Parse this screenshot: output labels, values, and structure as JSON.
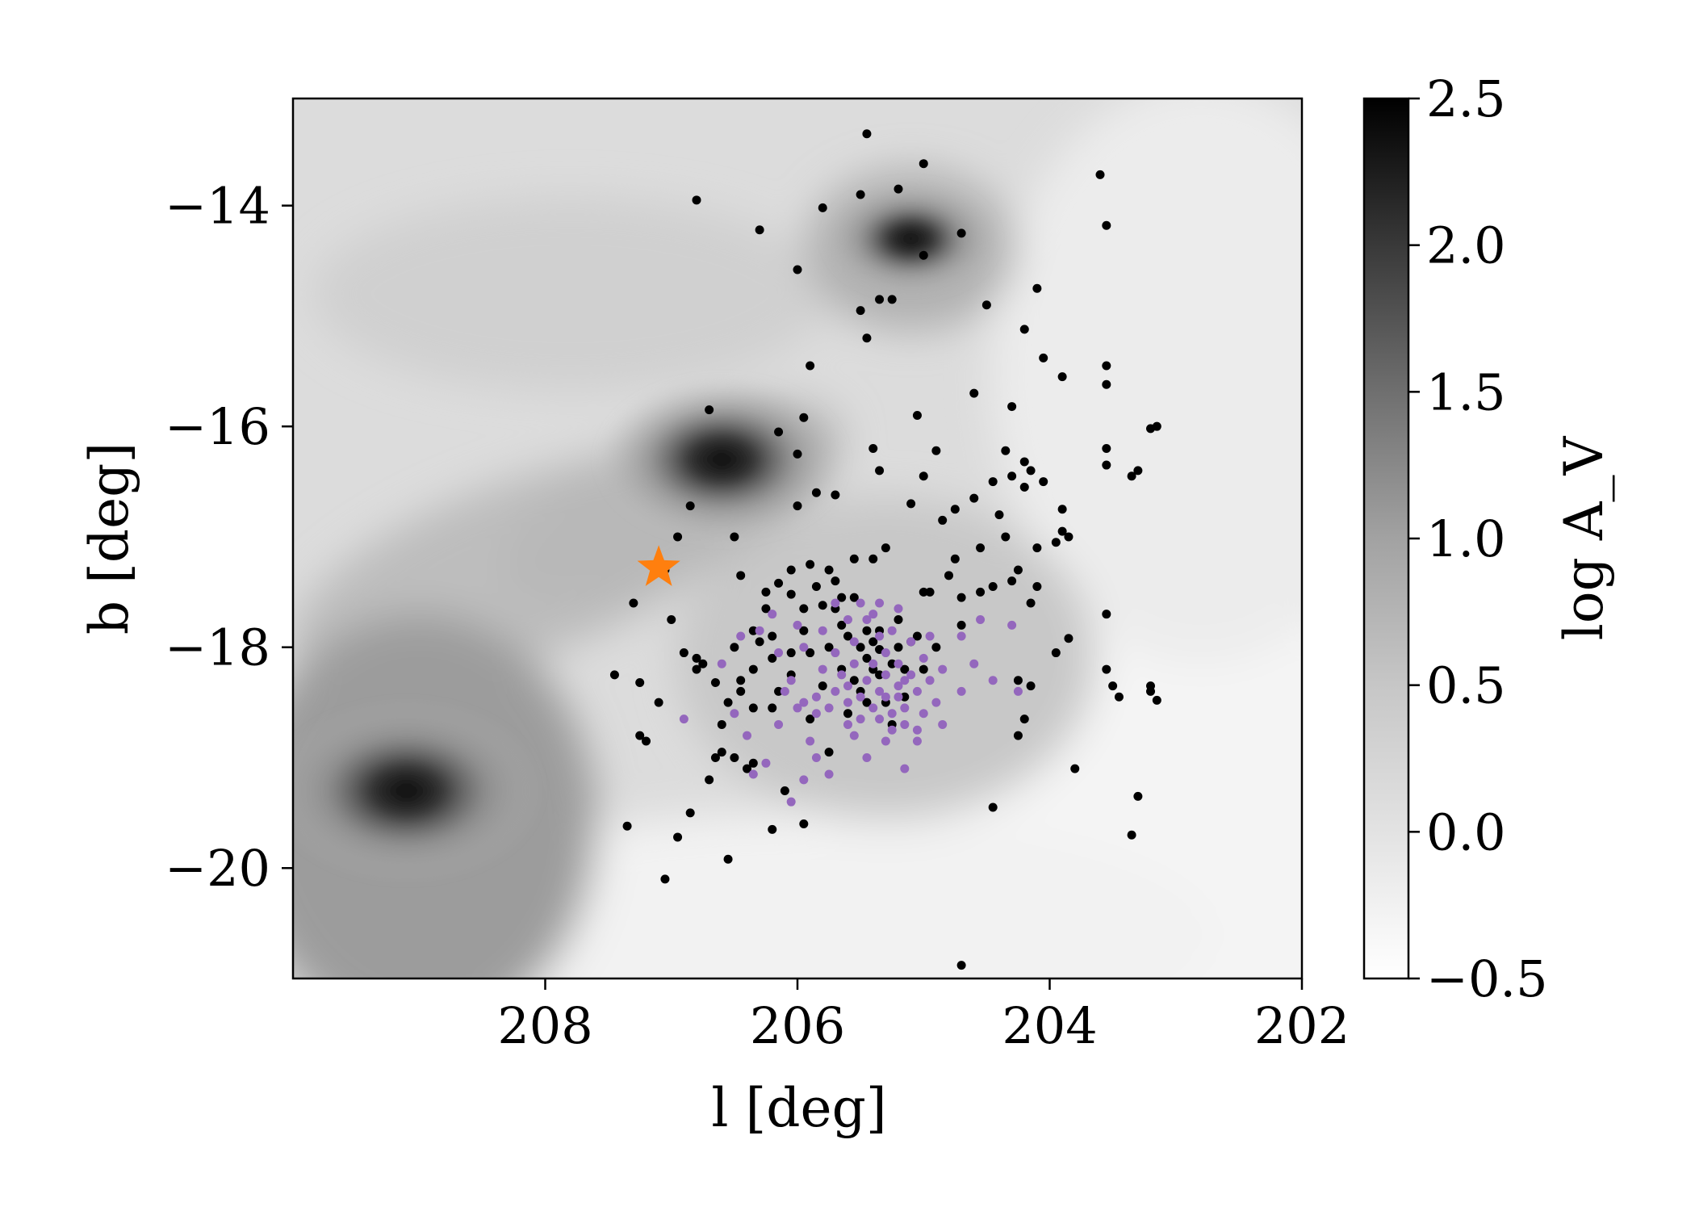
{
  "chart_data": {
    "type": "scatter",
    "title": "",
    "xlabel": "l [deg]",
    "ylabel": "b [deg]",
    "xlim": [
      210.0,
      202.0
    ],
    "ylim": [
      -21.0,
      -13.03
    ],
    "x_ticks": [
      208,
      206,
      204,
      202
    ],
    "x_tick_labels": [
      "208",
      "206",
      "204",
      "202"
    ],
    "y_ticks": [
      -14,
      -16,
      -18,
      -20
    ],
    "y_tick_labels": [
      "−14",
      "−16",
      "−18",
      "−20"
    ],
    "legend": "none",
    "grid": false,
    "background_map": {
      "quantity": "log A_V",
      "colormap": "gray_r",
      "dark_clouds": [
        {
          "l": 206.6,
          "b": -16.3,
          "strength": 2.3
        },
        {
          "l": 209.1,
          "b": -19.3,
          "strength": 2.5
        },
        {
          "l": 205.1,
          "b": -14.3,
          "strength": 1.6
        }
      ]
    },
    "colorbar": {
      "label": "log A_V",
      "range": [
        -0.5,
        2.5
      ],
      "ticks": [
        2.5,
        2.0,
        1.5,
        1.0,
        0.5,
        0.0,
        -0.5
      ],
      "tick_labels": [
        "2.5",
        "2.0",
        "1.5",
        "1.0",
        "0.5",
        "0.0",
        "−0.5"
      ]
    },
    "series": [
      {
        "color": "#000000",
        "marker": "circle",
        "points": [
          [
            205.45,
            -13.35
          ],
          [
            205.0,
            -13.62
          ],
          [
            205.5,
            -13.9
          ],
          [
            205.8,
            -14.02
          ],
          [
            206.8,
            -13.95
          ],
          [
            206.3,
            -14.22
          ],
          [
            205.2,
            -13.85
          ],
          [
            204.7,
            -14.25
          ],
          [
            203.6,
            -13.72
          ],
          [
            203.55,
            -14.18
          ],
          [
            205.0,
            -14.45
          ],
          [
            206.0,
            -14.58
          ],
          [
            205.35,
            -14.85
          ],
          [
            205.25,
            -14.85
          ],
          [
            205.5,
            -14.95
          ],
          [
            205.45,
            -15.2
          ],
          [
            204.1,
            -14.75
          ],
          [
            204.5,
            -14.9
          ],
          [
            204.2,
            -15.12
          ],
          [
            204.05,
            -15.38
          ],
          [
            203.55,
            -15.45
          ],
          [
            203.9,
            -15.55
          ],
          [
            203.55,
            -15.62
          ],
          [
            205.9,
            -15.45
          ],
          [
            204.6,
            -15.7
          ],
          [
            204.3,
            -15.82
          ],
          [
            205.05,
            -15.9
          ],
          [
            205.95,
            -15.92
          ],
          [
            206.7,
            -15.85
          ],
          [
            206.15,
            -16.05
          ],
          [
            206.0,
            -16.25
          ],
          [
            205.4,
            -16.2
          ],
          [
            205.85,
            -16.6
          ],
          [
            205.35,
            -16.4
          ],
          [
            205.0,
            -16.45
          ],
          [
            204.9,
            -16.22
          ],
          [
            204.35,
            -16.22
          ],
          [
            204.3,
            -16.45
          ],
          [
            204.45,
            -16.5
          ],
          [
            204.6,
            -16.65
          ],
          [
            204.2,
            -16.55
          ],
          [
            203.55,
            -16.2
          ],
          [
            203.55,
            -16.35
          ],
          [
            203.35,
            -16.45
          ],
          [
            203.3,
            -16.4
          ],
          [
            203.15,
            -16.0
          ],
          [
            203.2,
            -16.02
          ],
          [
            203.9,
            -16.75
          ],
          [
            204.2,
            -16.32
          ],
          [
            204.15,
            -16.4
          ],
          [
            204.05,
            -16.5
          ],
          [
            203.9,
            -16.95
          ],
          [
            203.85,
            -17.0
          ],
          [
            204.75,
            -16.75
          ],
          [
            205.1,
            -16.7
          ],
          [
            205.7,
            -16.62
          ],
          [
            206.0,
            -16.72
          ],
          [
            206.85,
            -16.72
          ],
          [
            206.5,
            -17.0
          ],
          [
            206.95,
            -17.0
          ],
          [
            207.05,
            -17.3
          ],
          [
            206.45,
            -17.35
          ],
          [
            206.25,
            -17.5
          ],
          [
            205.55,
            -17.2
          ],
          [
            205.3,
            -17.1
          ],
          [
            205.4,
            -17.2
          ],
          [
            205.0,
            -17.5
          ],
          [
            204.8,
            -17.35
          ],
          [
            204.75,
            -17.2
          ],
          [
            204.95,
            -17.5
          ],
          [
            204.85,
            -16.85
          ],
          [
            204.4,
            -16.8
          ],
          [
            204.55,
            -17.1
          ],
          [
            204.35,
            -17.0
          ],
          [
            203.95,
            -17.05
          ],
          [
            204.1,
            -17.1
          ],
          [
            204.25,
            -17.3
          ],
          [
            204.3,
            -17.4
          ],
          [
            204.45,
            -17.45
          ],
          [
            204.55,
            -17.5
          ],
          [
            204.7,
            -17.55
          ],
          [
            204.15,
            -17.6
          ],
          [
            204.1,
            -17.45
          ],
          [
            203.55,
            -17.7
          ],
          [
            203.85,
            -17.92
          ],
          [
            203.95,
            -18.05
          ],
          [
            204.7,
            -17.8
          ],
          [
            205.55,
            -17.55
          ],
          [
            205.65,
            -17.55
          ],
          [
            205.7,
            -17.65
          ],
          [
            205.8,
            -17.62
          ],
          [
            205.95,
            -17.65
          ],
          [
            205.65,
            -17.8
          ],
          [
            205.45,
            -17.85
          ],
          [
            205.4,
            -17.95
          ],
          [
            205.35,
            -18.02
          ],
          [
            205.2,
            -18.0
          ],
          [
            205.1,
            -17.95
          ],
          [
            205.0,
            -18.2
          ],
          [
            205.25,
            -18.15
          ],
          [
            205.45,
            -18.1
          ],
          [
            205.65,
            -18.2
          ],
          [
            205.55,
            -18.3
          ],
          [
            205.35,
            -18.25
          ],
          [
            205.5,
            -18.4
          ],
          [
            205.45,
            -18.5
          ],
          [
            205.3,
            -18.5
          ],
          [
            205.15,
            -18.45
          ],
          [
            205.25,
            -18.7
          ],
          [
            205.6,
            -18.6
          ],
          [
            205.75,
            -18.95
          ],
          [
            205.9,
            -18.65
          ],
          [
            206.2,
            -18.55
          ],
          [
            206.05,
            -18.25
          ],
          [
            206.2,
            -18.1
          ],
          [
            206.3,
            -17.95
          ],
          [
            206.35,
            -18.2
          ],
          [
            206.45,
            -18.3
          ],
          [
            206.55,
            -18.5
          ],
          [
            206.65,
            -18.32
          ],
          [
            206.8,
            -18.2
          ],
          [
            206.8,
            -18.1
          ],
          [
            206.45,
            -18.4
          ],
          [
            206.6,
            -18.7
          ],
          [
            207.0,
            -17.75
          ],
          [
            207.3,
            -17.6
          ],
          [
            207.45,
            -18.25
          ],
          [
            207.25,
            -18.32
          ],
          [
            207.1,
            -18.5
          ],
          [
            207.25,
            -18.8
          ],
          [
            207.2,
            -18.85
          ],
          [
            206.6,
            -18.95
          ],
          [
            206.65,
            -19.0
          ],
          [
            206.5,
            -19.0
          ],
          [
            206.7,
            -19.2
          ],
          [
            206.4,
            -19.1
          ],
          [
            206.1,
            -19.3
          ],
          [
            206.35,
            -19.05
          ],
          [
            206.85,
            -19.5
          ],
          [
            207.35,
            -19.62
          ],
          [
            206.95,
            -19.72
          ],
          [
            206.55,
            -19.92
          ],
          [
            206.2,
            -19.65
          ],
          [
            205.95,
            -19.6
          ],
          [
            207.05,
            -20.1
          ],
          [
            203.8,
            -19.1
          ],
          [
            204.45,
            -19.45
          ],
          [
            203.3,
            -19.35
          ],
          [
            203.35,
            -19.7
          ],
          [
            204.7,
            -20.88
          ],
          [
            203.55,
            -18.2
          ],
          [
            203.5,
            -18.35
          ],
          [
            203.45,
            -18.45
          ],
          [
            203.2,
            -18.35
          ],
          [
            203.2,
            -18.4
          ],
          [
            203.15,
            -18.48
          ],
          [
            204.25,
            -18.3
          ],
          [
            204.15,
            -18.35
          ],
          [
            204.2,
            -18.65
          ],
          [
            204.25,
            -18.8
          ],
          [
            205.7,
            -17.4
          ],
          [
            205.75,
            -17.3
          ],
          [
            205.9,
            -17.25
          ],
          [
            206.05,
            -17.3
          ],
          [
            206.15,
            -17.42
          ],
          [
            206.25,
            -17.65
          ],
          [
            206.05,
            -17.52
          ],
          [
            205.85,
            -17.45
          ],
          [
            205.95,
            -17.85
          ],
          [
            205.9,
            -18.05
          ],
          [
            205.75,
            -18.0
          ],
          [
            205.8,
            -18.35
          ],
          [
            205.5,
            -18.0
          ],
          [
            205.35,
            -17.85
          ],
          [
            205.2,
            -17.75
          ],
          [
            206.05,
            -18.05
          ],
          [
            206.2,
            -17.9
          ],
          [
            206.35,
            -17.85
          ],
          [
            206.5,
            -18.0
          ],
          [
            206.15,
            -18.4
          ],
          [
            205.6,
            -17.9
          ],
          [
            205.4,
            -18.2
          ],
          [
            205.15,
            -18.2
          ],
          [
            205.05,
            -17.9
          ],
          [
            204.9,
            -18.0
          ],
          [
            206.9,
            -18.05
          ],
          [
            206.75,
            -18.15
          ],
          [
            206.35,
            -18.55
          ]
        ]
      },
      {
        "color": "#9467bd",
        "marker": "circle",
        "points": [
          [
            205.5,
            -17.6
          ],
          [
            205.45,
            -17.75
          ],
          [
            205.35,
            -17.9
          ],
          [
            205.3,
            -18.05
          ],
          [
            205.2,
            -18.15
          ],
          [
            205.1,
            -18.25
          ],
          [
            205.2,
            -18.35
          ],
          [
            205.3,
            -18.45
          ],
          [
            205.4,
            -18.55
          ],
          [
            205.5,
            -18.65
          ],
          [
            205.6,
            -18.5
          ],
          [
            205.7,
            -18.4
          ],
          [
            205.65,
            -18.25
          ],
          [
            205.55,
            -18.15
          ],
          [
            205.45,
            -18.3
          ],
          [
            205.35,
            -18.4
          ],
          [
            205.25,
            -18.6
          ],
          [
            205.15,
            -18.55
          ],
          [
            205.05,
            -18.4
          ],
          [
            204.95,
            -18.3
          ],
          [
            205.0,
            -18.1
          ],
          [
            205.1,
            -17.95
          ],
          [
            205.25,
            -17.85
          ],
          [
            205.4,
            -17.7
          ],
          [
            205.55,
            -17.95
          ],
          [
            205.7,
            -18.05
          ],
          [
            205.8,
            -18.2
          ],
          [
            205.85,
            -18.45
          ],
          [
            205.75,
            -18.55
          ],
          [
            205.6,
            -18.7
          ],
          [
            205.35,
            -18.65
          ],
          [
            205.25,
            -18.75
          ],
          [
            205.15,
            -18.7
          ],
          [
            205.0,
            -18.6
          ],
          [
            204.9,
            -18.5
          ],
          [
            204.85,
            -18.2
          ],
          [
            204.95,
            -17.9
          ],
          [
            205.2,
            -17.65
          ],
          [
            205.35,
            -17.6
          ],
          [
            205.6,
            -17.75
          ],
          [
            205.8,
            -17.85
          ],
          [
            205.95,
            -18.0
          ],
          [
            206.05,
            -18.3
          ],
          [
            205.95,
            -18.5
          ],
          [
            205.85,
            -18.6
          ],
          [
            205.55,
            -18.8
          ],
          [
            205.3,
            -18.85
          ],
          [
            205.05,
            -18.85
          ],
          [
            204.85,
            -18.7
          ],
          [
            204.7,
            -18.4
          ],
          [
            204.6,
            -18.15
          ],
          [
            204.7,
            -17.9
          ],
          [
            204.55,
            -17.75
          ],
          [
            204.3,
            -17.8
          ],
          [
            204.45,
            -18.3
          ],
          [
            204.25,
            -18.4
          ],
          [
            206.15,
            -18.05
          ],
          [
            206.3,
            -17.85
          ],
          [
            206.45,
            -17.9
          ],
          [
            206.6,
            -18.15
          ],
          [
            206.5,
            -18.6
          ],
          [
            206.4,
            -18.8
          ],
          [
            206.15,
            -18.7
          ],
          [
            206.0,
            -18.55
          ],
          [
            205.9,
            -18.85
          ],
          [
            205.85,
            -19.0
          ],
          [
            205.75,
            -19.15
          ],
          [
            205.45,
            -19.0
          ],
          [
            205.15,
            -19.1
          ],
          [
            205.5,
            -18.45
          ],
          [
            205.3,
            -18.25
          ],
          [
            205.2,
            -18.45
          ],
          [
            205.4,
            -18.15
          ],
          [
            205.6,
            -18.35
          ],
          [
            206.25,
            -19.05
          ],
          [
            206.35,
            -19.15
          ],
          [
            206.9,
            -18.65
          ],
          [
            206.05,
            -19.4
          ],
          [
            205.95,
            -19.2
          ],
          [
            206.1,
            -18.4
          ],
          [
            206.2,
            -17.7
          ],
          [
            206.0,
            -17.8
          ],
          [
            205.7,
            -17.6
          ],
          [
            205.05,
            -18.75
          ],
          [
            205.15,
            -18.3
          ]
        ]
      },
      {
        "color": "#ff7f0e",
        "marker": "star",
        "points": [
          [
            207.1,
            -17.28
          ]
        ]
      }
    ]
  }
}
